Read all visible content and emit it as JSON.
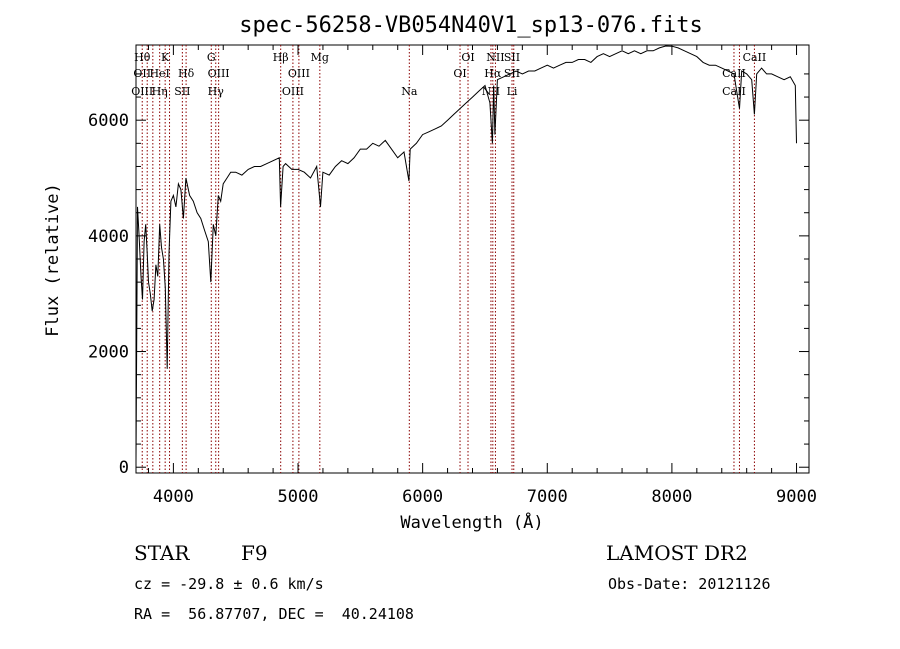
{
  "chart_data": {
    "type": "line",
    "title": "spec-56258-VB054N40V1_sp13-076.fits",
    "xlabel": "Wavelength (Å)",
    "ylabel": "Flux (relative)",
    "xlim": [
      3700,
      9100
    ],
    "ylim": [
      -100,
      7300
    ],
    "xticks": [
      4000,
      5000,
      6000,
      7000,
      8000,
      9000
    ],
    "yticks": [
      0,
      2000,
      4000,
      6000
    ],
    "grid": false,
    "line_color": "#000000",
    "marker_color": "#8b0000",
    "spectrum": {
      "x": [
        3700,
        3712,
        3725,
        3740,
        3752,
        3765,
        3778,
        3790,
        3800,
        3815,
        3830,
        3845,
        3860,
        3875,
        3890,
        3905,
        3920,
        3935,
        3950,
        3965,
        3980,
        4000,
        4020,
        4040,
        4060,
        4080,
        4100,
        4130,
        4160,
        4190,
        4220,
        4250,
        4280,
        4300,
        4320,
        4340,
        4360,
        4380,
        4400,
        4430,
        4460,
        4500,
        4550,
        4600,
        4650,
        4700,
        4750,
        4800,
        4850,
        4860,
        4880,
        4900,
        4950,
        5000,
        5050,
        5100,
        5150,
        5180,
        5200,
        5250,
        5300,
        5350,
        5400,
        5450,
        5500,
        5550,
        5600,
        5650,
        5700,
        5750,
        5800,
        5850,
        5890,
        5900,
        5950,
        6000,
        6050,
        6100,
        6150,
        6200,
        6250,
        6300,
        6350,
        6400,
        6450,
        6500,
        6540,
        6560,
        6570,
        6580,
        6600,
        6650,
        6700,
        6750,
        6800,
        6850,
        6900,
        6950,
        7000,
        7050,
        7100,
        7150,
        7200,
        7250,
        7300,
        7350,
        7400,
        7450,
        7500,
        7550,
        7600,
        7650,
        7700,
        7750,
        7800,
        7850,
        7900,
        7950,
        8000,
        8050,
        8100,
        8150,
        8200,
        8250,
        8300,
        8350,
        8400,
        8450,
        8498,
        8520,
        8542,
        8560,
        8600,
        8640,
        8662,
        8680,
        8720,
        8760,
        8800,
        8850,
        8900,
        8950,
        8990,
        9000
      ],
      "y": [
        100,
        4500,
        4000,
        3300,
        2900,
        3900,
        4200,
        3700,
        3200,
        3000,
        2700,
        2900,
        3500,
        3300,
        4200,
        3800,
        3600,
        3100,
        1700,
        3700,
        4600,
        4700,
        4500,
        4900,
        4800,
        4300,
        5000,
        4700,
        4600,
        4400,
        4300,
        4100,
        3900,
        3200,
        4200,
        4000,
        4700,
        4600,
        4900,
        5000,
        5100,
        5100,
        5050,
        5150,
        5200,
        5200,
        5250,
        5300,
        5350,
        4500,
        5200,
        5250,
        5150,
        5150,
        5100,
        5000,
        5200,
        4500,
        5100,
        5050,
        5200,
        5300,
        5250,
        5350,
        5500,
        5500,
        5600,
        5550,
        5650,
        5500,
        5350,
        5450,
        4950,
        5500,
        5600,
        5750,
        5800,
        5850,
        5900,
        6000,
        6100,
        6200,
        6300,
        6400,
        6500,
        6600,
        6300,
        5600,
        6600,
        5750,
        6700,
        6750,
        6800,
        6850,
        6800,
        6850,
        6850,
        6900,
        6950,
        6900,
        6950,
        7000,
        7000,
        7050,
        7050,
        7000,
        7100,
        7150,
        7100,
        7150,
        7200,
        7150,
        7200,
        7150,
        7200,
        7200,
        7250,
        7300,
        7280,
        7250,
        7200,
        7150,
        7100,
        7000,
        6950,
        6950,
        6900,
        6850,
        6800,
        6500,
        6200,
        6850,
        6800,
        6700,
        6100,
        6800,
        6900,
        6800,
        6800,
        6750,
        6700,
        6750,
        6600,
        5600
      ]
    },
    "line_markers": [
      {
        "x": 3750,
        "top": "Hθ",
        "mid": "OII",
        "bot": "OIII"
      },
      {
        "x": 3790,
        "top": "",
        "mid": "",
        "bot": ""
      },
      {
        "x": 3835,
        "top": "",
        "mid": "",
        "bot": ""
      },
      {
        "x": 3890,
        "top": "",
        "mid": "HeI",
        "bot": "Hη"
      },
      {
        "x": 3934,
        "top": "K",
        "mid": "",
        "bot": ""
      },
      {
        "x": 3969,
        "top": "",
        "mid": "",
        "bot": ""
      },
      {
        "x": 4072,
        "top": "",
        "mid": "",
        "bot": "SII"
      },
      {
        "x": 4102,
        "top": "",
        "mid": "Hδ",
        "bot": ""
      },
      {
        "x": 4304,
        "top": "G",
        "mid": "",
        "bot": ""
      },
      {
        "x": 4340,
        "top": "",
        "mid": "",
        "bot": "Hγ"
      },
      {
        "x": 4363,
        "top": "",
        "mid": "OIII",
        "bot": ""
      },
      {
        "x": 4861,
        "top": "Hβ",
        "mid": "",
        "bot": ""
      },
      {
        "x": 4959,
        "top": "",
        "mid": "",
        "bot": "OIII"
      },
      {
        "x": 5007,
        "top": "",
        "mid": "OIII",
        "bot": ""
      },
      {
        "x": 5175,
        "top": "Mg",
        "mid": "",
        "bot": ""
      },
      {
        "x": 5893,
        "top": "",
        "mid": "",
        "bot": "Na"
      },
      {
        "x": 6300,
        "top": "",
        "mid": "OI",
        "bot": ""
      },
      {
        "x": 6364,
        "top": "OI",
        "mid": "",
        "bot": ""
      },
      {
        "x": 6548,
        "top": "",
        "mid": "",
        "bot": "NII"
      },
      {
        "x": 6563,
        "top": "",
        "mid": "Hα",
        "bot": ""
      },
      {
        "x": 6584,
        "top": "NII",
        "mid": "",
        "bot": ""
      },
      {
        "x": 6717,
        "top": "SII",
        "mid": "SII",
        "bot": "Li"
      },
      {
        "x": 6731,
        "top": "",
        "mid": "",
        "bot": ""
      },
      {
        "x": 8498,
        "top": "",
        "mid": "CaII",
        "bot": "CaII"
      },
      {
        "x": 8542,
        "top": "",
        "mid": "",
        "bot": ""
      },
      {
        "x": 8662,
        "top": "CaII",
        "mid": "",
        "bot": ""
      }
    ]
  },
  "info": {
    "class": "STAR",
    "subclass": "F9",
    "survey": "LAMOST DR2",
    "cz": "cz = -29.8 ± 0.6 km/s",
    "obsdate": "Obs-Date: 20121126",
    "radec": "RA =  56.87707, DEC =  40.24108"
  }
}
